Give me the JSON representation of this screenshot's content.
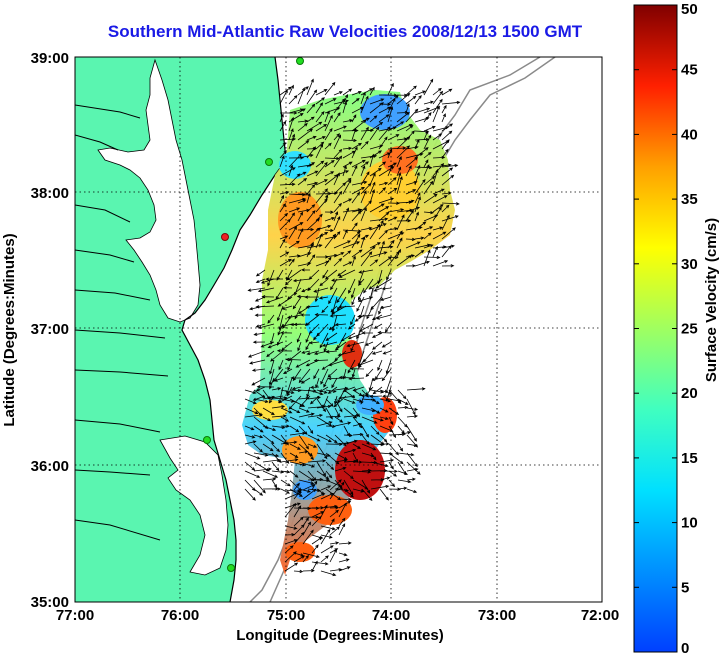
{
  "title": "Southern Mid-Atlantic Raw Velocities 2008/12/13 1500 GMT",
  "xlabel": "Longitude (Degrees:Minutes)",
  "ylabel": "Latitude (Degrees:Minutes)",
  "colorbar_label": "Surface Velocity (cm/s)",
  "chart_data": {
    "type": "map",
    "xlim": [
      -77,
      -72
    ],
    "ylim": [
      35,
      39
    ],
    "x_ticks": [
      "77:00",
      "76:00",
      "75:00",
      "74:00",
      "73:00",
      "72:00"
    ],
    "y_ticks": [
      "39:00",
      "38:00",
      "37:00",
      "36:00",
      "35:00"
    ],
    "grid": true,
    "colorbar": {
      "min": 0,
      "max": 50,
      "ticks": [
        "50",
        "45",
        "40",
        "35",
        "30",
        "25",
        "20",
        "15",
        "10",
        "5",
        "0"
      ],
      "colormap": "jet"
    },
    "colors": {
      "land": "#5af5b0",
      "coastline": "#000000",
      "bathymetry": "#8a8a8a",
      "title": "#1a1ae6",
      "station_active": "#22dd22",
      "station_inactive": "#ee2222"
    }
  }
}
